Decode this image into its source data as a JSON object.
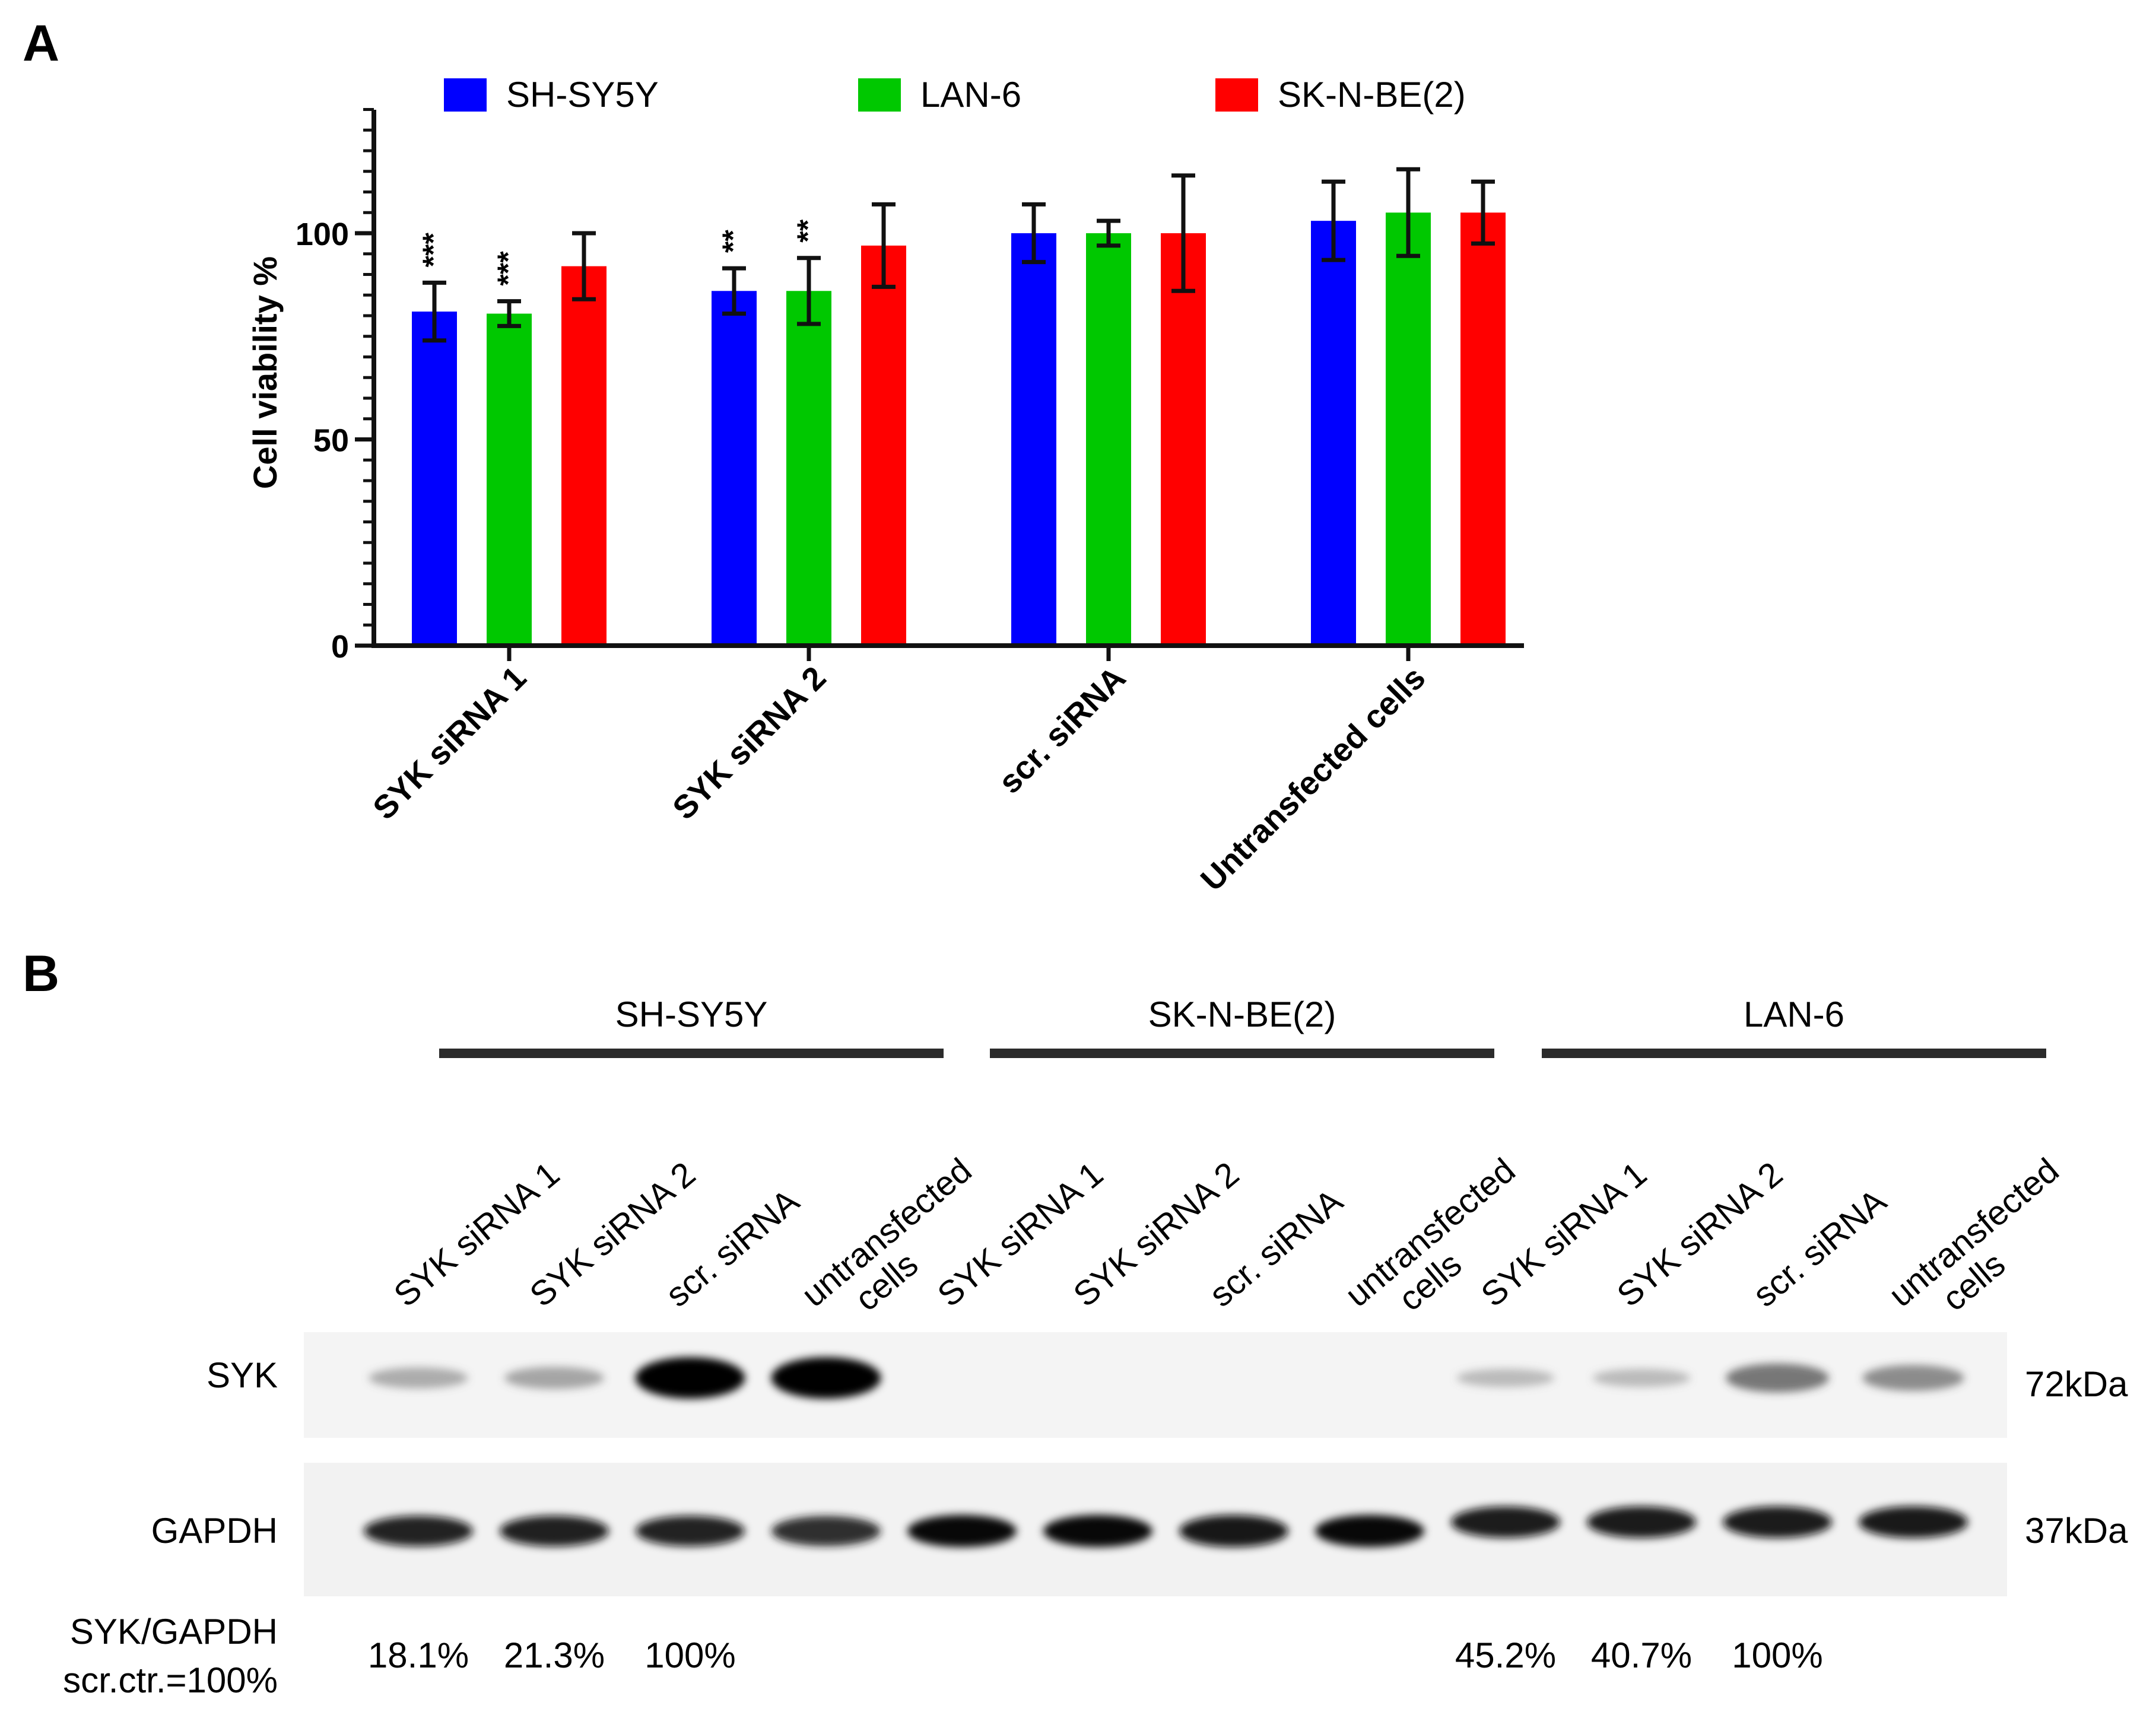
{
  "panel_a": {
    "label": "A"
  },
  "panel_b": {
    "label": "B"
  },
  "chart_data": {
    "type": "bar",
    "ylabel": "Cell viability %",
    "xlabel": "",
    "ylim": [
      0,
      130
    ],
    "yticks": [
      0,
      50,
      100
    ],
    "y_minor_step": 5,
    "grid": false,
    "legend_position": "top",
    "categories": [
      "SYK siRNA 1",
      "SYK siRNA 2",
      "scr. siRNA",
      "Untransfected cells"
    ],
    "series": [
      {
        "name": "SH-SY5Y",
        "color": "#0000ff",
        "values": [
          81,
          86,
          100,
          103
        ],
        "errors": [
          7,
          5.5,
          7,
          9.5
        ],
        "annotations": [
          "***",
          "**",
          "",
          ""
        ]
      },
      {
        "name": "LAN-6",
        "color": "#00c800",
        "values": [
          80.5,
          86,
          100,
          105
        ],
        "errors": [
          3,
          8,
          3,
          10.5
        ],
        "annotations": [
          "***",
          "**",
          "",
          ""
        ]
      },
      {
        "name": "SK-N-BE(2)",
        "color": "#ff0000",
        "values": [
          92,
          97,
          100,
          105
        ],
        "errors": [
          8,
          10,
          14,
          7.5
        ],
        "annotations": [
          "",
          "",
          "",
          ""
        ]
      }
    ]
  },
  "blot": {
    "groups": [
      {
        "name": "SH-SY5Y"
      },
      {
        "name": "SK-N-BE(2)"
      },
      {
        "name": "LAN-6"
      }
    ],
    "lanes": [
      {
        "label1": "SYK siRNA 1",
        "label2": "",
        "syk": 0.28,
        "gapdh": 0.78,
        "ratio": "18.1%"
      },
      {
        "label1": "SYK siRNA 2",
        "label2": "",
        "syk": 0.32,
        "gapdh": 0.8,
        "ratio": "21.3%"
      },
      {
        "label1": "scr. siRNA",
        "label2": "",
        "syk": 1.0,
        "gapdh": 0.78,
        "ratio": "100%"
      },
      {
        "label1": "untransfected",
        "label2": "cells",
        "syk": 1.0,
        "gapdh": 0.74,
        "ratio": ""
      },
      {
        "label1": "SYK siRNA 1",
        "label2": "",
        "syk": 0,
        "gapdh": 0.92,
        "ratio": ""
      },
      {
        "label1": "SYK siRNA 2",
        "label2": "",
        "syk": 0,
        "gapdh": 0.92,
        "ratio": ""
      },
      {
        "label1": "scr. siRNA",
        "label2": "",
        "syk": 0,
        "gapdh": 0.9,
        "ratio": ""
      },
      {
        "label1": "untransfected",
        "label2": "cells",
        "syk": 0,
        "gapdh": 0.92,
        "ratio": ""
      },
      {
        "label1": "SYK siRNA 1",
        "label2": "",
        "syk": 0.18,
        "gapdh": 0.85,
        "ratio": "45.2%"
      },
      {
        "label1": "SYK siRNA 2",
        "label2": "",
        "syk": 0.18,
        "gapdh": 0.86,
        "ratio": "40.7%"
      },
      {
        "label1": "scr. siRNA",
        "label2": "",
        "syk": 0.55,
        "gapdh": 0.86,
        "ratio": "100%"
      },
      {
        "label1": "untransfected",
        "label2": "cells",
        "syk": 0.45,
        "gapdh": 0.88,
        "ratio": ""
      }
    ],
    "rows": {
      "syk": "SYK",
      "gapdh": "GAPDH"
    },
    "ratio_label": {
      "line1": "SYK/GAPDH",
      "line2": "scr.ctr.=100%"
    },
    "mw": {
      "syk": "72kDa",
      "gapdh": "37kDa"
    }
  }
}
